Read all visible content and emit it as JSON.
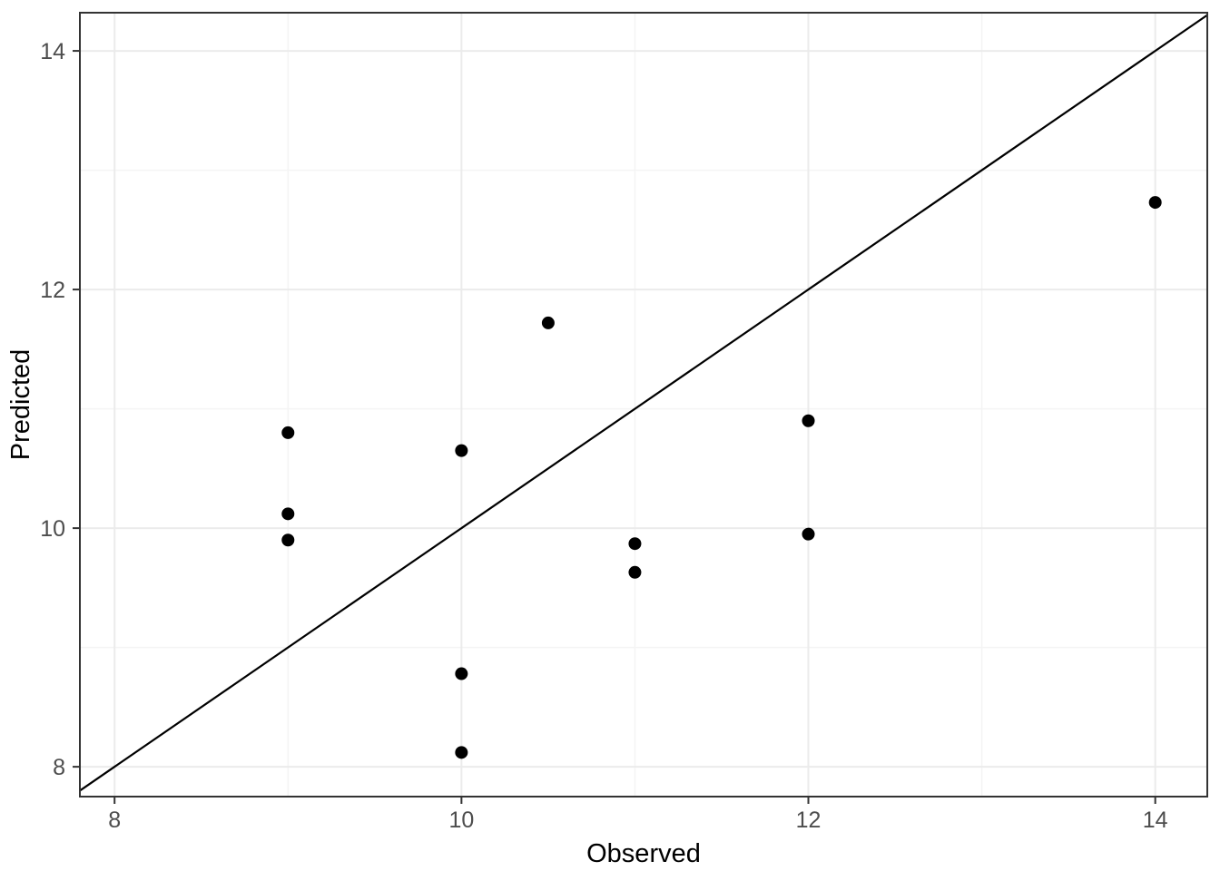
{
  "chart_data": {
    "type": "scatter",
    "title": "",
    "xlabel": "Observed",
    "ylabel": "Predicted",
    "xlim": [
      7.8,
      14.3
    ],
    "ylim": [
      7.75,
      14.32
    ],
    "x_major_ticks": [
      8,
      10,
      12,
      14
    ],
    "y_major_ticks": [
      8,
      10,
      12,
      14
    ],
    "x_minor_ticks": [
      9,
      11,
      13
    ],
    "y_minor_ticks": [
      9,
      11,
      13
    ],
    "points": [
      {
        "x": 9,
        "y": 10.8
      },
      {
        "x": 9,
        "y": 10.12
      },
      {
        "x": 9,
        "y": 9.9
      },
      {
        "x": 10,
        "y": 10.65
      },
      {
        "x": 10,
        "y": 8.78
      },
      {
        "x": 10,
        "y": 8.12
      },
      {
        "x": 10.5,
        "y": 11.72
      },
      {
        "x": 11,
        "y": 9.87
      },
      {
        "x": 11,
        "y": 9.63
      },
      {
        "x": 12,
        "y": 10.9
      },
      {
        "x": 12,
        "y": 9.95
      },
      {
        "x": 14,
        "y": 12.73
      }
    ],
    "reference_line": {
      "slope": 1,
      "intercept": 0
    },
    "point_radius": 7,
    "grid": true,
    "legend": "none",
    "colors": {
      "point": "#000000",
      "line": "#000000",
      "grid_major": "#ebebeb",
      "grid_minor": "#f4f4f4",
      "panel_border": "#333333",
      "tick_mark": "#333333",
      "axis_text": "#4d4d4d",
      "axis_title": "#000000",
      "background": "#ffffff"
    }
  }
}
